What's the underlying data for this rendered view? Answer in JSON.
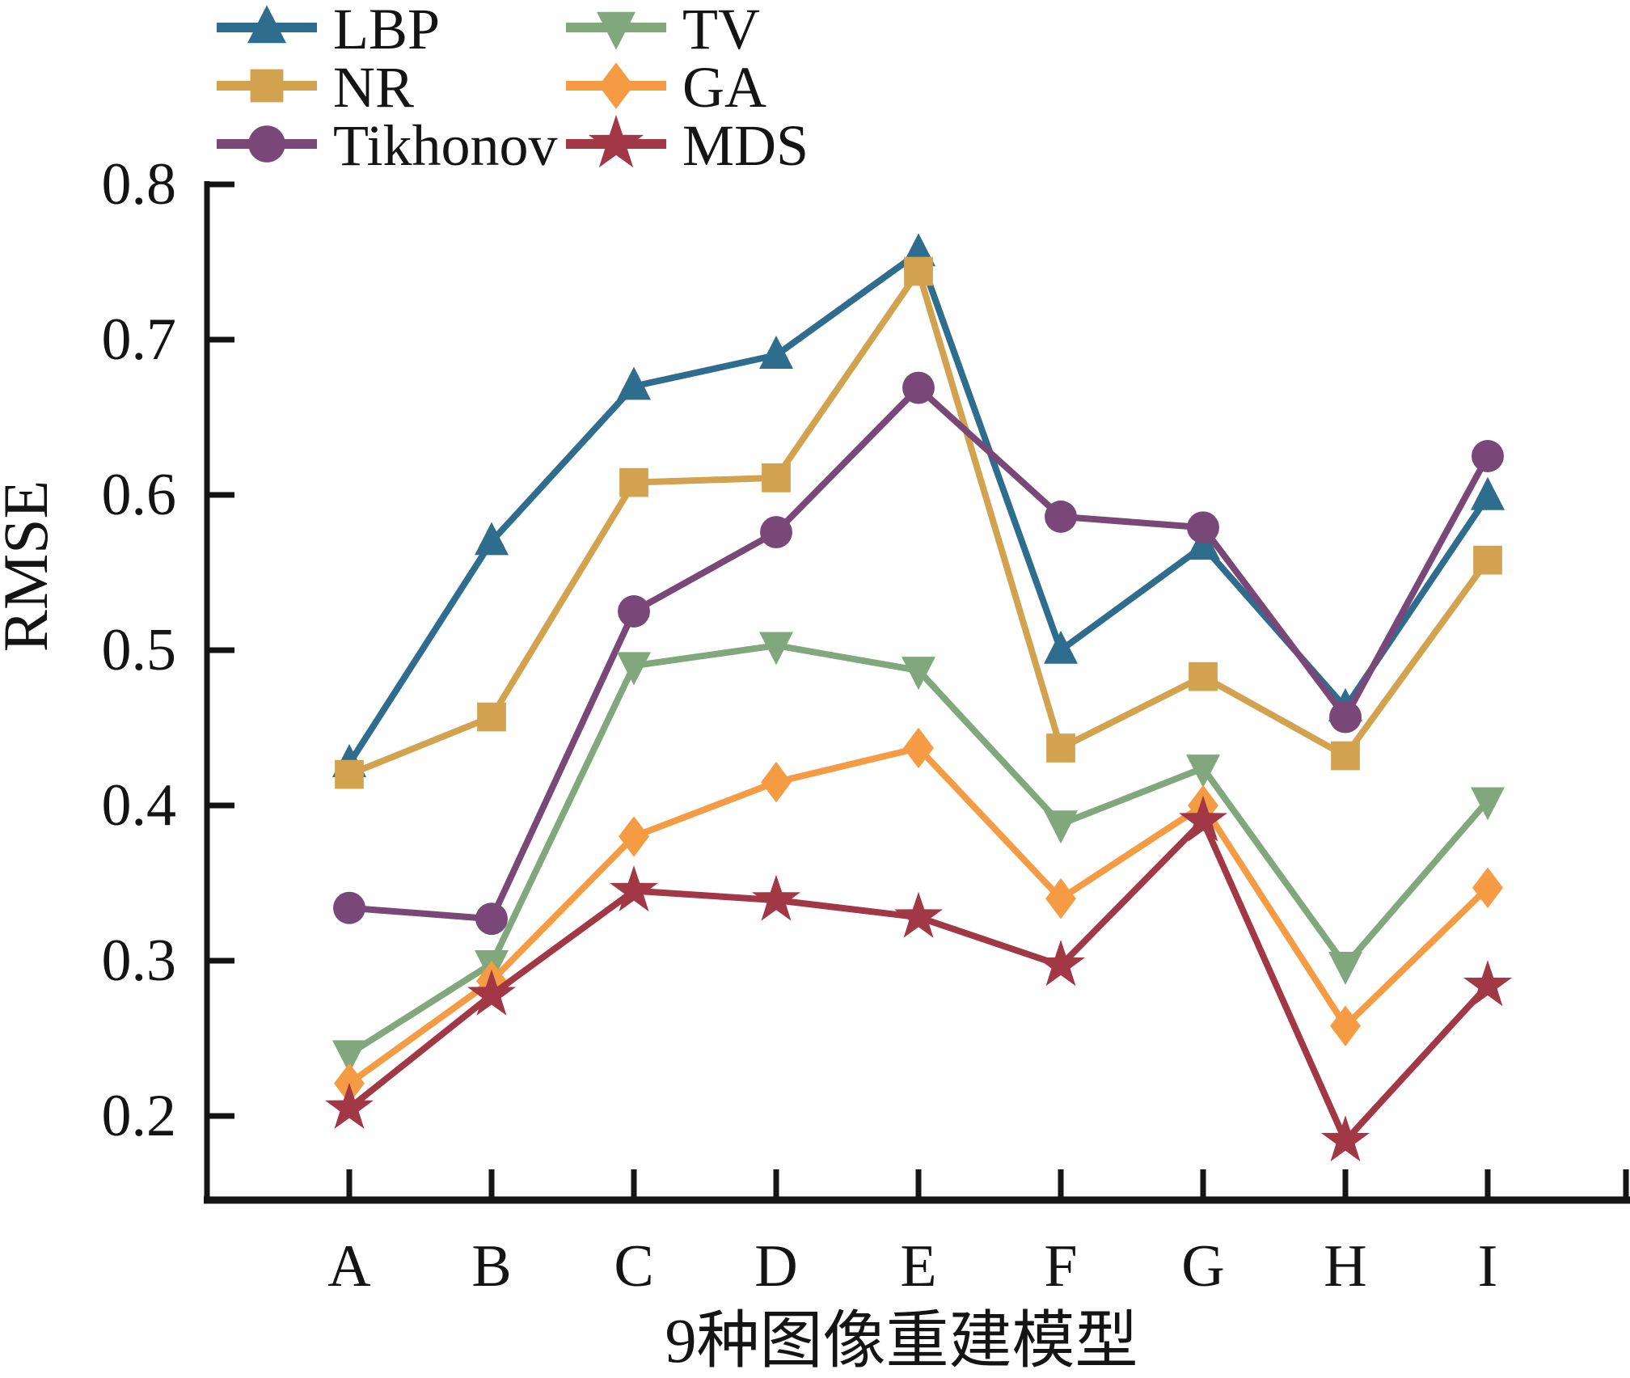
{
  "chart_data": {
    "type": "line",
    "title": "",
    "xlabel": "9种图像重建模型",
    "ylabel": "RMSE",
    "categories": [
      "A",
      "B",
      "C",
      "D",
      "E",
      "F",
      "G",
      "H",
      "I"
    ],
    "ylim": [
      0.145,
      0.8
    ],
    "yticks": [
      0.2,
      0.3,
      0.4,
      0.5,
      0.6,
      0.7,
      0.8
    ],
    "ytick_labels": [
      "0.2",
      "0.3",
      "0.4",
      "0.5",
      "0.6",
      "0.7",
      "0.8"
    ],
    "grid": false,
    "legend_position": "top",
    "legend_columns": [
      [
        "LBP",
        "NR",
        "Tikhonov"
      ],
      [
        "TV",
        "GA",
        "MDS"
      ]
    ],
    "axis_color": "#141414",
    "series": [
      {
        "name": "LBP",
        "marker": "triangle-up",
        "color": "#2e6d8e",
        "values": [
          0.427,
          0.57,
          0.67,
          0.69,
          0.756,
          0.5,
          0.567,
          0.463,
          0.599
        ]
      },
      {
        "name": "NR",
        "marker": "square",
        "color": "#d2a24f",
        "values": [
          0.42,
          0.457,
          0.608,
          0.611,
          0.744,
          0.437,
          0.483,
          0.432,
          0.558
        ]
      },
      {
        "name": "Tikhonov",
        "marker": "circle",
        "color": "#7a4878",
        "values": [
          0.334,
          0.327,
          0.525,
          0.576,
          0.669,
          0.586,
          0.579,
          0.457,
          0.625
        ]
      },
      {
        "name": "TV",
        "marker": "triangle-down",
        "color": "#80a87c",
        "values": [
          0.24,
          0.298,
          0.49,
          0.503,
          0.487,
          0.388,
          0.424,
          0.297,
          0.403
        ]
      },
      {
        "name": "GA",
        "marker": "diamond",
        "color": "#f59b43",
        "values": [
          0.221,
          0.287,
          0.38,
          0.415,
          0.437,
          0.34,
          0.4,
          0.258,
          0.347
        ]
      },
      {
        "name": "MDS",
        "marker": "star",
        "color": "#a23745",
        "values": [
          0.205,
          0.278,
          0.345,
          0.339,
          0.328,
          0.297,
          0.39,
          0.184,
          0.284
        ]
      }
    ]
  }
}
